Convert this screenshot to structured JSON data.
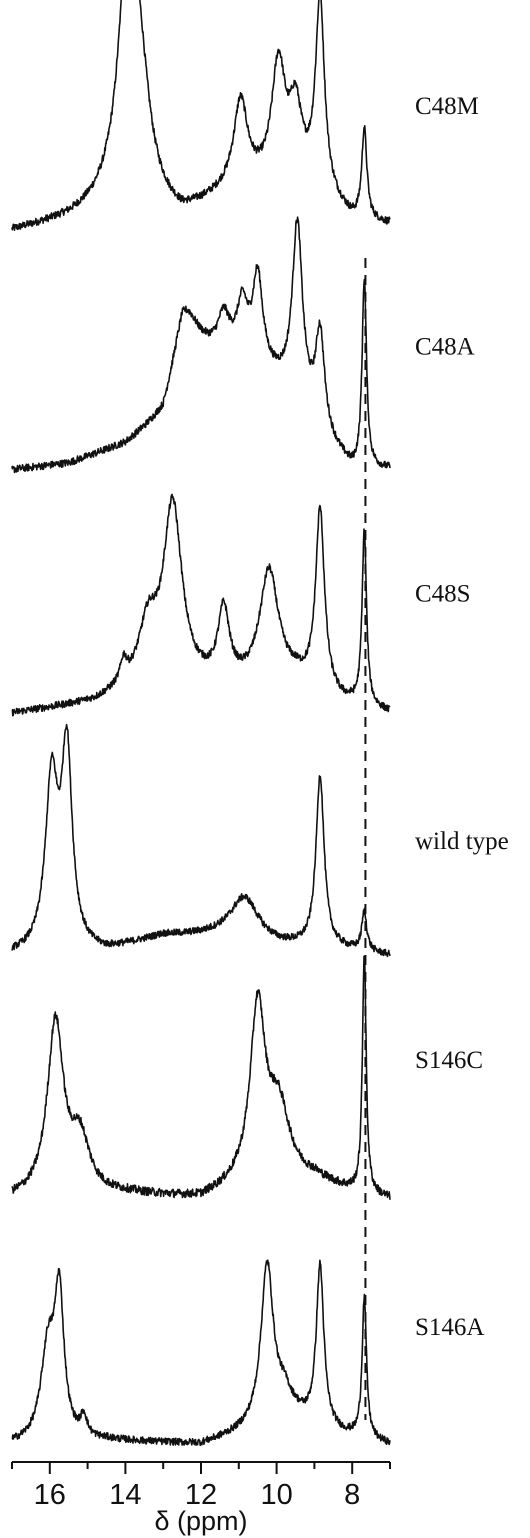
{
  "chart_data": {
    "type": "line",
    "xlabel": "δ (ppm)",
    "xlim": [
      17.0,
      7.0
    ],
    "x_reversed": true,
    "xticks": [
      16,
      14,
      12,
      10,
      8
    ],
    "reference_line_ppm": 7.65,
    "stacked": true,
    "series": [
      {
        "name": "C48M",
        "peaks": [
          {
            "ppm": 13.95,
            "height": 1.0,
            "width": 0.3
          },
          {
            "ppm": 13.65,
            "height": 0.55,
            "width": 0.35
          },
          {
            "ppm": 10.95,
            "height": 0.38,
            "width": 0.22
          },
          {
            "ppm": 9.95,
            "height": 0.55,
            "width": 0.22
          },
          {
            "ppm": 9.5,
            "height": 0.33,
            "width": 0.2
          },
          {
            "ppm": 8.85,
            "height": 0.88,
            "width": 0.14
          },
          {
            "ppm": 7.68,
            "height": 0.42,
            "width": 0.08
          }
        ],
        "baseline": [
          [
            17.0,
            0.0
          ],
          [
            15.5,
            0.05
          ],
          [
            14.5,
            0.1
          ],
          [
            12.5,
            0.05
          ],
          [
            11.0,
            0.2
          ],
          [
            9.0,
            0.2
          ],
          [
            8.0,
            0.05
          ],
          [
            7.0,
            0.03
          ]
        ]
      },
      {
        "name": "C48A",
        "peaks": [
          {
            "ppm": 12.4,
            "height": 0.2,
            "width": 0.4
          },
          {
            "ppm": 11.4,
            "height": 0.16,
            "width": 0.18
          },
          {
            "ppm": 10.9,
            "height": 0.22,
            "width": 0.16
          },
          {
            "ppm": 10.5,
            "height": 0.42,
            "width": 0.16
          },
          {
            "ppm": 9.45,
            "height": 0.82,
            "width": 0.16
          },
          {
            "ppm": 8.85,
            "height": 0.45,
            "width": 0.14
          },
          {
            "ppm": 7.68,
            "height": 0.9,
            "width": 0.07
          }
        ],
        "baseline": [
          [
            17.0,
            0.0
          ],
          [
            15.5,
            0.03
          ],
          [
            14.0,
            0.12
          ],
          [
            13.0,
            0.25
          ],
          [
            12.5,
            0.55
          ],
          [
            11.0,
            0.55
          ],
          [
            9.5,
            0.35
          ],
          [
            8.5,
            0.1
          ],
          [
            8.0,
            0.0
          ],
          [
            7.0,
            0.0
          ]
        ]
      },
      {
        "name": "C48S",
        "peaks": [
          {
            "ppm": 14.05,
            "height": 0.1,
            "width": 0.1
          },
          {
            "ppm": 13.4,
            "height": 0.28,
            "width": 0.3
          },
          {
            "ppm": 12.75,
            "height": 0.88,
            "width": 0.3
          },
          {
            "ppm": 11.4,
            "height": 0.35,
            "width": 0.18
          },
          {
            "ppm": 10.2,
            "height": 0.55,
            "width": 0.3
          },
          {
            "ppm": 8.85,
            "height": 0.88,
            "width": 0.14
          },
          {
            "ppm": 7.68,
            "height": 0.85,
            "width": 0.07
          }
        ],
        "baseline": [
          [
            17.0,
            0.0
          ],
          [
            14.8,
            0.05
          ],
          [
            14.0,
            0.1
          ],
          [
            12.0,
            0.12
          ],
          [
            10.8,
            0.12
          ],
          [
            9.5,
            0.15
          ],
          [
            8.3,
            0.05
          ],
          [
            7.0,
            0.0
          ]
        ]
      },
      {
        "name": "wild type",
        "peaks": [
          {
            "ppm": 15.95,
            "height": 0.86,
            "width": 0.2
          },
          {
            "ppm": 15.55,
            "height": 1.0,
            "width": 0.17
          },
          {
            "ppm": 10.85,
            "height": 0.22,
            "width": 0.45
          },
          {
            "ppm": 8.85,
            "height": 0.88,
            "width": 0.13
          },
          {
            "ppm": 7.68,
            "height": 0.2,
            "width": 0.08
          }
        ],
        "baseline": [
          [
            17.0,
            0.0
          ],
          [
            14.5,
            0.02
          ],
          [
            13.0,
            0.1
          ],
          [
            11.5,
            0.1
          ],
          [
            10.0,
            0.05
          ],
          [
            8.3,
            0.03
          ],
          [
            7.0,
            0.0
          ]
        ]
      },
      {
        "name": "S146C",
        "peaks": [
          {
            "ppm": 15.85,
            "height": 0.72,
            "width": 0.26
          },
          {
            "ppm": 15.2,
            "height": 0.22,
            "width": 0.3
          },
          {
            "ppm": 10.5,
            "height": 0.72,
            "width": 0.24
          },
          {
            "ppm": 9.95,
            "height": 0.3,
            "width": 0.35
          },
          {
            "ppm": 7.68,
            "height": 1.0,
            "width": 0.06
          }
        ],
        "baseline": [
          [
            17.0,
            0.0
          ],
          [
            14.0,
            0.02
          ],
          [
            12.0,
            0.0
          ],
          [
            11.0,
            0.05
          ],
          [
            9.0,
            0.08
          ],
          [
            8.0,
            0.03
          ],
          [
            7.0,
            0.0
          ]
        ]
      },
      {
        "name": "S146A",
        "peaks": [
          {
            "ppm": 16.05,
            "height": 0.45,
            "width": 0.22
          },
          {
            "ppm": 15.75,
            "height": 0.7,
            "width": 0.15
          },
          {
            "ppm": 15.1,
            "height": 0.1,
            "width": 0.1
          },
          {
            "ppm": 10.25,
            "height": 0.8,
            "width": 0.2
          },
          {
            "ppm": 9.8,
            "height": 0.12,
            "width": 0.25
          },
          {
            "ppm": 8.85,
            "height": 0.8,
            "width": 0.12
          },
          {
            "ppm": 7.68,
            "height": 0.7,
            "width": 0.07
          }
        ],
        "baseline": [
          [
            17.0,
            0.0
          ],
          [
            14.5,
            0.02
          ],
          [
            12.0,
            0.0
          ],
          [
            11.0,
            0.05
          ],
          [
            9.5,
            0.12
          ],
          [
            8.3,
            0.05
          ],
          [
            7.0,
            0.0
          ]
        ]
      }
    ]
  }
}
